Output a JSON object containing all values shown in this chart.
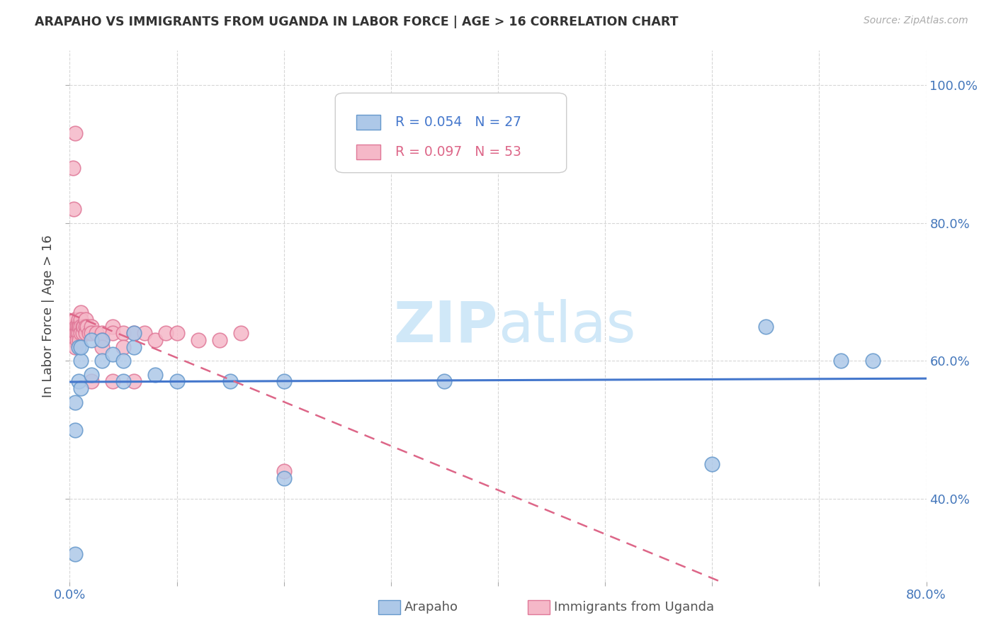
{
  "title": "ARAPAHO VS IMMIGRANTS FROM UGANDA IN LABOR FORCE | AGE > 16 CORRELATION CHART",
  "source": "Source: ZipAtlas.com",
  "ylabel": "In Labor Force | Age > 16",
  "xlim": [
    0,
    0.8
  ],
  "ylim": [
    0.28,
    1.05
  ],
  "yticks": [
    0.4,
    0.6,
    0.8,
    1.0
  ],
  "yticklabels": [
    "40.0%",
    "60.0%",
    "80.0%",
    "100.0%"
  ],
  "blue_label": "Arapaho",
  "pink_label": "Immigrants from Uganda",
  "blue_R": "R = 0.054",
  "blue_N": "N = 27",
  "pink_R": "R = 0.097",
  "pink_N": "N = 53",
  "blue_color": "#adc8e8",
  "blue_edge": "#6699cc",
  "pink_color": "#f5b8c8",
  "pink_edge": "#e07898",
  "blue_line_color": "#4477cc",
  "pink_line_color": "#dd6688",
  "watermark_color": "#d0e8f8",
  "blue_scatter_x": [
    0.005,
    0.005,
    0.008,
    0.008,
    0.01,
    0.01,
    0.01,
    0.02,
    0.02,
    0.03,
    0.03,
    0.04,
    0.05,
    0.05,
    0.06,
    0.06,
    0.08,
    0.1,
    0.15,
    0.2,
    0.2,
    0.35,
    0.6,
    0.65,
    0.72,
    0.75,
    0.005
  ],
  "blue_scatter_y": [
    0.54,
    0.5,
    0.57,
    0.62,
    0.56,
    0.6,
    0.62,
    0.58,
    0.63,
    0.6,
    0.63,
    0.61,
    0.57,
    0.6,
    0.62,
    0.64,
    0.58,
    0.57,
    0.57,
    0.57,
    0.43,
    0.57,
    0.45,
    0.65,
    0.6,
    0.6,
    0.32
  ],
  "pink_scatter_x": [
    0.003,
    0.004,
    0.005,
    0.005,
    0.005,
    0.005,
    0.006,
    0.006,
    0.007,
    0.007,
    0.007,
    0.008,
    0.008,
    0.008,
    0.009,
    0.009,
    0.01,
    0.01,
    0.01,
    0.01,
    0.012,
    0.012,
    0.013,
    0.015,
    0.015,
    0.015,
    0.016,
    0.018,
    0.02,
    0.02,
    0.02,
    0.025,
    0.03,
    0.03,
    0.03,
    0.04,
    0.04,
    0.04,
    0.05,
    0.05,
    0.06,
    0.06,
    0.07,
    0.08,
    0.09,
    0.1,
    0.12,
    0.14,
    0.16,
    0.2,
    0.003,
    0.004,
    0.005
  ],
  "pink_scatter_y": [
    0.65,
    0.63,
    0.66,
    0.64,
    0.63,
    0.62,
    0.65,
    0.64,
    0.65,
    0.64,
    0.63,
    0.66,
    0.65,
    0.64,
    0.65,
    0.63,
    0.67,
    0.66,
    0.65,
    0.64,
    0.65,
    0.64,
    0.65,
    0.66,
    0.65,
    0.64,
    0.65,
    0.64,
    0.65,
    0.64,
    0.57,
    0.64,
    0.64,
    0.63,
    0.62,
    0.65,
    0.64,
    0.57,
    0.64,
    0.62,
    0.64,
    0.57,
    0.64,
    0.63,
    0.64,
    0.64,
    0.63,
    0.63,
    0.64,
    0.44,
    0.88,
    0.82,
    0.93
  ]
}
